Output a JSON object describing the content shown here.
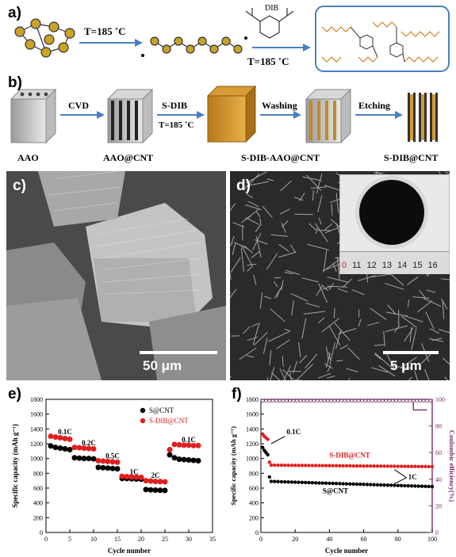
{
  "panels": {
    "a": {
      "label": "a)",
      "temp1": "T=185 ˚C",
      "temp2": "T=185 ˚C",
      "reagent": "DIB"
    },
    "b": {
      "label": "b)",
      "steps": [
        "CVD",
        "S-DIB",
        "Washing",
        "Etching"
      ],
      "temp": "T=185 ˚C",
      "stages": [
        "AAO",
        "AAO@CNT",
        "S-DIB-AAO@CNT",
        "S-DIB@CNT"
      ]
    },
    "c": {
      "label": "c)",
      "scale": "50 μm"
    },
    "d": {
      "label": "d)",
      "scale": "5 μm",
      "ruler_numbers": [
        "0",
        "11",
        "12",
        "13",
        "14",
        "15",
        "16"
      ]
    },
    "e": {
      "label": "e)"
    },
    "f": {
      "label": "f)"
    }
  },
  "chart_data": [
    {
      "panel": "e",
      "type": "scatter",
      "xlabel": "Cycle number",
      "ylabel": "Specific capacity (mAh g⁻¹)",
      "xlim": [
        0,
        35
      ],
      "ylim": [
        0,
        1800
      ],
      "xticks": [
        0,
        5,
        10,
        15,
        20,
        25,
        30,
        35
      ],
      "yticks": [
        0,
        200,
        400,
        600,
        800,
        1000,
        1200,
        1400,
        1600,
        1800
      ],
      "legend": [
        "S@CNT",
        "S-DIB@CNT"
      ],
      "legend_position": "top-right",
      "annotations": [
        "0.1C",
        "0.2C",
        "0.5C",
        "1C",
        "2C",
        "0.1C"
      ],
      "series": [
        {
          "name": "S@CNT",
          "color": "#000000",
          "x": [
            1,
            2,
            3,
            4,
            5,
            6,
            7,
            8,
            9,
            10,
            11,
            12,
            13,
            14,
            15,
            16,
            17,
            18,
            19,
            20,
            21,
            22,
            23,
            24,
            25,
            26,
            27,
            28,
            29,
            30,
            31,
            32
          ],
          "values": [
            1170,
            1150,
            1140,
            1130,
            1120,
            1010,
            1005,
            1000,
            1000,
            995,
            880,
            875,
            870,
            865,
            860,
            730,
            728,
            725,
            722,
            720,
            580,
            575,
            572,
            570,
            568,
            1050,
            1010,
            990,
            985,
            980,
            975,
            970
          ]
        },
        {
          "name": "S-DIB@CNT",
          "color": "#e02020",
          "x": [
            1,
            2,
            3,
            4,
            5,
            6,
            7,
            8,
            9,
            10,
            11,
            12,
            13,
            14,
            15,
            16,
            17,
            18,
            19,
            20,
            21,
            22,
            23,
            24,
            25,
            26,
            27,
            28,
            29,
            30,
            31,
            32
          ],
          "values": [
            1300,
            1290,
            1280,
            1270,
            1260,
            1150,
            1145,
            1140,
            1135,
            1130,
            970,
            965,
            960,
            955,
            950,
            760,
            755,
            750,
            748,
            745,
            700,
            695,
            690,
            688,
            685,
            1120,
            1190,
            1185,
            1180,
            1180,
            1175,
            1175
          ]
        }
      ]
    },
    {
      "panel": "f",
      "type": "scatter",
      "xlabel": "Cycle number",
      "ylabel": "Specific capacity (mAh g⁻¹)",
      "y2label": "Coulombic efficiency(%)",
      "xlim": [
        0,
        100
      ],
      "ylim": [
        0,
        1800
      ],
      "y2lim": [
        0,
        100
      ],
      "xticks": [
        0,
        20,
        40,
        60,
        80,
        100
      ],
      "yticks": [
        0,
        200,
        400,
        600,
        800,
        1000,
        1200,
        1400,
        1600,
        1800
      ],
      "y2ticks": [
        0,
        20,
        40,
        60,
        80,
        100
      ],
      "annotations": [
        "0.1C",
        "S-DIB@CNT",
        "1C",
        "S@CNT"
      ],
      "series": [
        {
          "name": "S@CNT",
          "color": "#000000",
          "capacity_start": [
            1150,
            1110,
            1080,
            1050,
            750
          ],
          "capacity_1C_start": 690,
          "capacity_1C_end": 620
        },
        {
          "name": "S-DIB@CNT",
          "color": "#e02020",
          "capacity_start": [
            1330,
            1300,
            1280,
            1260,
            950
          ],
          "capacity_1C_start": 910,
          "capacity_1C_end": 890
        },
        {
          "name": "Coulombic efficiency",
          "color": "#7a2a6a",
          "ce_value": 99
        }
      ]
    }
  ]
}
